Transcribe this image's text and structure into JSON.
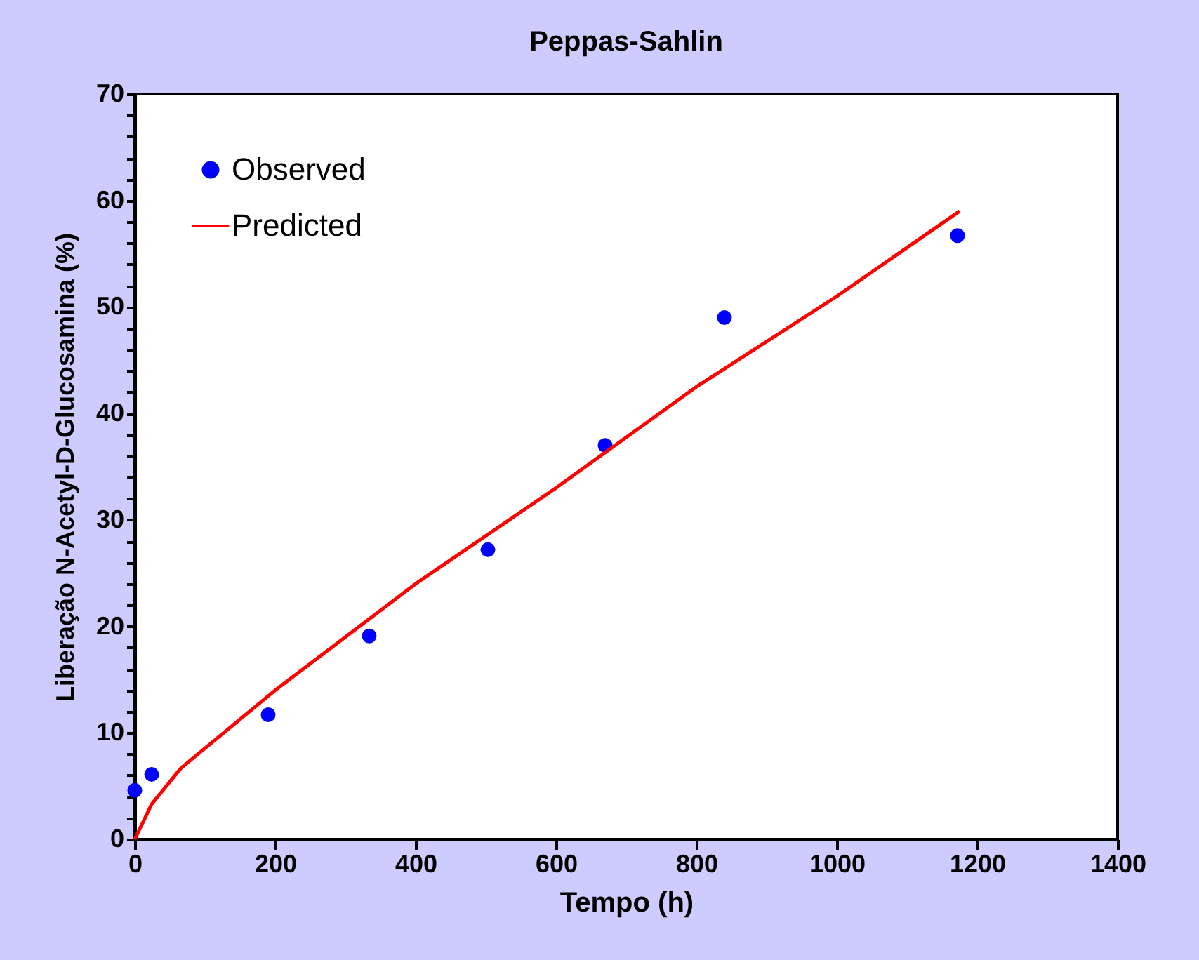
{
  "chart_data": {
    "type": "scatter",
    "title": "Peppas-Sahlin",
    "xlabel": "Tempo (h)",
    "ylabel": "Liberação N-Acetyl-D-Glucosamina (%)",
    "series": [
      {
        "name": "Observed",
        "type": "scatter",
        "color": "#0000ff",
        "marker": "circle",
        "x": [
          0,
          24,
          190,
          334,
          503,
          670,
          840,
          1172
        ],
        "values": [
          4.6,
          6.1,
          11.7,
          19.1,
          27.2,
          37.0,
          49.0,
          56.7
        ]
      },
      {
        "name": "Predicted",
        "type": "line",
        "color": "#ff0000",
        "marker": "none",
        "line_style": "solid",
        "x": [
          0,
          24,
          66,
          200,
          400,
          600,
          800,
          1000,
          1175
        ],
        "values": [
          0,
          3.3,
          6.7,
          14,
          24,
          33,
          42.5,
          51,
          59
        ]
      }
    ],
    "xlim": [
      0,
      1400
    ],
    "xticks": [
      0,
      200,
      400,
      600,
      800,
      1000,
      1200,
      1400
    ],
    "ylim": [
      0,
      70
    ],
    "yticks": [
      0,
      {
        "value": 2,
        "label": null
      },
      {
        "value": 4,
        "label": null
      },
      {
        "value": 6,
        "label": null
      },
      {
        "value": 8,
        "label": null
      },
      10,
      {
        "value": 12,
        "label": null
      },
      {
        "value": 14,
        "label": null
      },
      {
        "value": 16,
        "label": null
      },
      {
        "value": 18,
        "label": null
      },
      20,
      {
        "value": 22,
        "label": null
      },
      {
        "value": 24,
        "label": null
      },
      {
        "value": 26,
        "label": null
      },
      {
        "value": 28,
        "label": null
      },
      30,
      {
        "value": 32,
        "label": null
      },
      {
        "value": 34,
        "label": null
      },
      {
        "value": 36,
        "label": null
      },
      {
        "value": 38,
        "label": null
      },
      40,
      {
        "value": 42,
        "label": null
      },
      {
        "value": 44,
        "label": null
      },
      {
        "value": 46,
        "label": null
      },
      {
        "value": 48,
        "label": null
      },
      50,
      {
        "value": 52,
        "label": null
      },
      {
        "value": 54,
        "label": null
      },
      {
        "value": 56,
        "label": null
      },
      {
        "value": 58,
        "label": null
      },
      60,
      {
        "value": 62,
        "label": null
      },
      {
        "value": 64,
        "label": null
      },
      {
        "value": 66,
        "label": null
      },
      {
        "value": 68,
        "label": null
      },
      70
    ],
    "grid": false,
    "legend": "top left"
  }
}
